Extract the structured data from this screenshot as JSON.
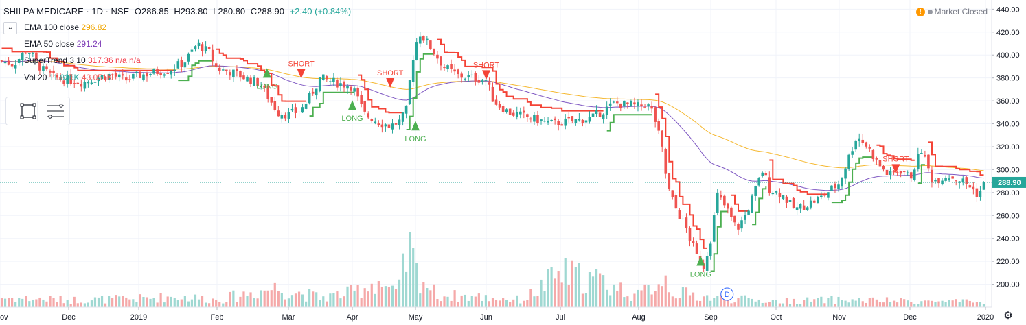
{
  "header": {
    "symbol": "SHILPA MEDICARE · 1D · NSE",
    "open": "O286.85",
    "high": "H293.80",
    "low": "L280.80",
    "close": "C288.90",
    "change": "+2.40 (+0.84%)",
    "market_status": "Market Closed"
  },
  "indicators": [
    {
      "label": "EMA 100 close",
      "value": "296.82",
      "color": "#f0a500"
    },
    {
      "label": "EMA 50 close",
      "value": "291.24",
      "color": "#7b39b5"
    },
    {
      "label": "SuperTrend 3 10",
      "value": "317.36",
      "value2": "n/a",
      "value3": "n/a",
      "color": "#f23645"
    },
    {
      "label": "Vol 20",
      "value": "11.826K",
      "value2": "43.051K",
      "color": "#26a69a"
    }
  ],
  "colors": {
    "up": "#26a69a",
    "down": "#ef5350",
    "st_up": "#4caf50",
    "st_down": "#f44336",
    "ema100": "#f5b830",
    "ema50": "#7e57c2",
    "vol_up": "#9fd8d2",
    "vol_down": "#f5a9a9"
  },
  "icons": [
    "chevron-down-icon",
    "rectangle-tool-icon",
    "lines-tool-icon",
    "warning-icon",
    "dot-icon",
    "gear-icon",
    "dividend-marker-icon"
  ],
  "chart_data": {
    "type": "candlestick",
    "y_axis": {
      "min": 180,
      "max": 448,
      "ticks": [
        200,
        220,
        240,
        260,
        280,
        300,
        320,
        340,
        360,
        380,
        400,
        420,
        440
      ],
      "position": "right"
    },
    "x_axis": {
      "labels": [
        "ov",
        "Dec",
        "2019",
        "Feb",
        "Mar",
        "Apr",
        "May",
        "Jun",
        "Jul",
        "Aug",
        "Sep",
        "Oct",
        "Nov",
        "Dec",
        "2020"
      ]
    },
    "last_price": "288.90",
    "markers": {
      "long_label": "LONG",
      "short_label": "SHORT",
      "long_month_positions": [
        3.7,
        5.0,
        6.0,
        9.86
      ],
      "long_prices": [
        385,
        357,
        339,
        221
      ],
      "short_month_positions": [
        4.2,
        5.6,
        7.0,
        12.8
      ],
      "short_prices": [
        383,
        375,
        382,
        300
      ],
      "dividend_label": "D"
    },
    "close_anchors": [
      [
        0,
        395
      ],
      [
        0.2,
        392
      ],
      [
        0.4,
        405
      ],
      [
        0.6,
        388
      ],
      [
        0.8,
        380
      ],
      [
        1.0,
        378
      ],
      [
        1.2,
        376
      ],
      [
        1.4,
        380
      ],
      [
        1.6,
        383
      ],
      [
        1.8,
        378
      ],
      [
        2.0,
        382
      ],
      [
        2.2,
        385
      ],
      [
        2.4,
        387
      ],
      [
        2.6,
        395
      ],
      [
        2.75,
        410
      ],
      [
        2.9,
        402
      ],
      [
        3.0,
        388
      ],
      [
        3.2,
        385
      ],
      [
        3.4,
        380
      ],
      [
        3.6,
        375
      ],
      [
        3.75,
        360
      ],
      [
        3.85,
        350
      ],
      [
        4.0,
        348
      ],
      [
        4.2,
        352
      ],
      [
        4.35,
        365
      ],
      [
        4.5,
        380
      ],
      [
        4.6,
        378
      ],
      [
        4.8,
        375
      ],
      [
        5.0,
        373
      ],
      [
        5.1,
        360
      ],
      [
        5.2,
        348
      ],
      [
        5.4,
        342
      ],
      [
        5.6,
        338
      ],
      [
        5.75,
        342
      ],
      [
        5.85,
        350
      ],
      [
        5.95,
        395
      ],
      [
        6.05,
        420
      ],
      [
        6.2,
        408
      ],
      [
        6.4,
        390
      ],
      [
        6.6,
        382
      ],
      [
        6.8,
        380
      ],
      [
        7.0,
        378
      ],
      [
        7.1,
        360
      ],
      [
        7.3,
        350
      ],
      [
        7.6,
        345
      ],
      [
        7.9,
        340
      ],
      [
        8.1,
        342
      ],
      [
        8.4,
        345
      ],
      [
        8.7,
        358
      ],
      [
        9.0,
        355
      ],
      [
        9.1,
        358
      ],
      [
        9.2,
        350
      ],
      [
        9.32,
        320
      ],
      [
        9.4,
        285
      ],
      [
        9.5,
        268
      ],
      [
        9.65,
        250
      ],
      [
        9.8,
        225
      ],
      [
        9.9,
        215
      ],
      [
        10.0,
        240
      ],
      [
        10.1,
        278
      ],
      [
        10.25,
        265
      ],
      [
        10.4,
        248
      ],
      [
        10.55,
        262
      ],
      [
        10.7,
        285
      ],
      [
        10.8,
        300
      ],
      [
        10.9,
        283
      ],
      [
        11.1,
        278
      ],
      [
        11.3,
        265
      ],
      [
        11.5,
        270
      ],
      [
        11.7,
        275
      ],
      [
        11.85,
        282
      ],
      [
        12.0,
        288
      ],
      [
        12.1,
        305
      ],
      [
        12.25,
        330
      ],
      [
        12.4,
        320
      ],
      [
        12.55,
        305
      ],
      [
        12.7,
        295
      ],
      [
        12.9,
        300
      ],
      [
        13.0,
        292
      ],
      [
        13.15,
        318
      ],
      [
        13.3,
        290
      ],
      [
        13.5,
        295
      ],
      [
        13.7,
        290
      ],
      [
        13.8,
        285
      ],
      [
        13.9,
        278
      ],
      [
        14.0,
        288.9
      ]
    ],
    "volume_anchors": [
      [
        0,
        8
      ],
      [
        1.0,
        6
      ],
      [
        2.0,
        7
      ],
      [
        2.5,
        9
      ],
      [
        3.0,
        6
      ],
      [
        3.8,
        16
      ],
      [
        4.5,
        8
      ],
      [
        5.0,
        12
      ],
      [
        5.4,
        22
      ],
      [
        5.7,
        10
      ],
      [
        5.9,
        48
      ],
      [
        6.0,
        30
      ],
      [
        6.3,
        10
      ],
      [
        7.0,
        8
      ],
      [
        7.5,
        6
      ],
      [
        8.0,
        28
      ],
      [
        8.5,
        22
      ],
      [
        9.0,
        9
      ],
      [
        9.35,
        26
      ],
      [
        9.5,
        12
      ],
      [
        10.0,
        8
      ],
      [
        11.0,
        5
      ],
      [
        12.0,
        6
      ],
      [
        13.0,
        5
      ],
      [
        14.0,
        4
      ]
    ],
    "volume_max": 50
  }
}
